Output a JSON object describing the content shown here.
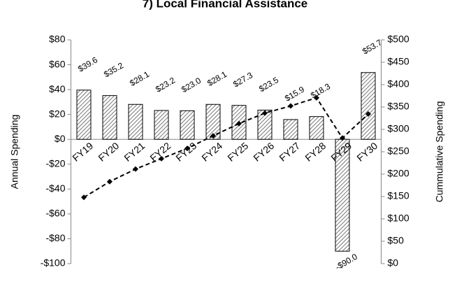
{
  "chart_data": {
    "type": "bar_line",
    "title": "7) Local Financial Assistance",
    "y_label": "Annual Spending",
    "y2_label": "Cummulative Spending",
    "categories": [
      "FY19",
      "FY20",
      "FY21",
      "FY22",
      "FY23",
      "FY24",
      "FY25",
      "FY26",
      "FY27",
      "FY28",
      "FY29",
      "FY30"
    ],
    "series": [
      {
        "type": "bar",
        "color": "#555555",
        "values": [
          39.6,
          35.2,
          28.1,
          23.2,
          23.0,
          28.1,
          27.3,
          23.5,
          15.9,
          18.3,
          -90.0,
          53.7
        ],
        "value_labels": [
          "$39.6",
          "$35.2",
          "$28.1",
          "$23.2",
          "$23.0",
          "$28.1",
          "$27.3",
          "$23.5",
          "$15.9",
          "$18.3",
          "-$90.0",
          "$53.7"
        ]
      },
      {
        "type": "line",
        "axis": "y2",
        "color": "#000000",
        "values": [
          148,
          183.2,
          211.3,
          234.5,
          257.5,
          285.6,
          312.9,
          336.4,
          352.3,
          370.6,
          280.6,
          334.3
        ]
      }
    ],
    "ylim": [
      -100,
      80
    ],
    "yticks": [
      {
        "value": -100,
        "label": "-$100"
      },
      {
        "value": -80,
        "label": "-$80"
      },
      {
        "value": -60,
        "label": "-$60"
      },
      {
        "value": -40,
        "label": "-$40"
      },
      {
        "value": -20,
        "label": "-$20"
      },
      {
        "value": 0,
        "label": "$0"
      },
      {
        "value": 20,
        "label": "$20"
      },
      {
        "value": 40,
        "label": "$40"
      },
      {
        "value": 60,
        "label": "$60"
      },
      {
        "value": 80,
        "label": "$80"
      }
    ],
    "y2lim": [
      0,
      500
    ],
    "y2ticks": [
      {
        "value": 0,
        "label": "$0"
      },
      {
        "value": 50,
        "label": "$50"
      },
      {
        "value": 100,
        "label": "$100"
      },
      {
        "value": 150,
        "label": "$150"
      },
      {
        "value": 200,
        "label": "$200"
      },
      {
        "value": 250,
        "label": "$250"
      },
      {
        "value": 300,
        "label": "$300"
      },
      {
        "value": 350,
        "label": "$350"
      },
      {
        "value": 400,
        "label": "$400"
      },
      {
        "value": 450,
        "label": "$450"
      },
      {
        "value": 500,
        "label": "$500"
      }
    ]
  }
}
